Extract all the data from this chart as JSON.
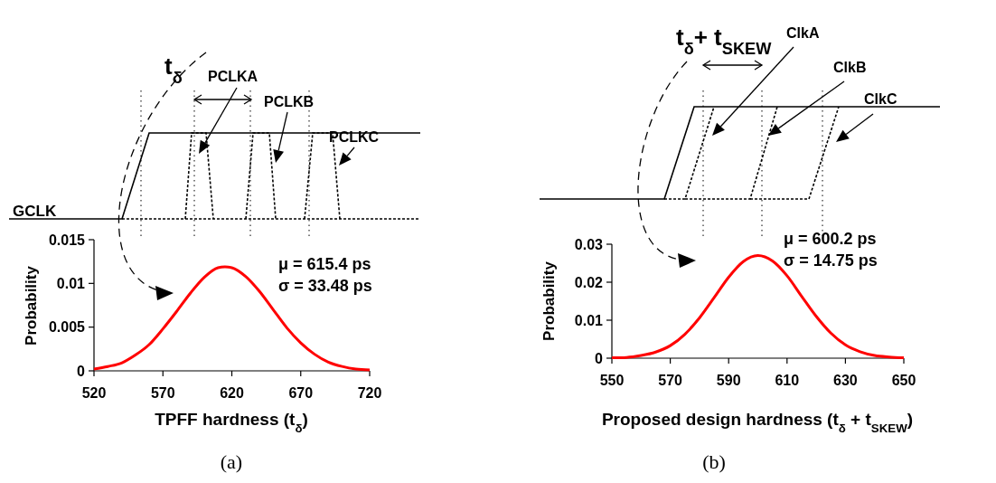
{
  "chart_data": [
    {
      "type": "line",
      "xlabel": "TPFF hardness (t$_{δ}$)",
      "ylabel": "Probability",
      "series": [
        {
          "color": "#ff0000",
          "x": [
            520,
            530,
            540,
            550,
            560,
            570,
            580,
            590,
            600,
            610,
            615,
            620,
            630,
            640,
            650,
            660,
            670,
            680,
            690,
            700,
            710,
            720
          ],
          "values": [
            0.0002,
            0.0005,
            0.0009,
            0.0018,
            0.003,
            0.0048,
            0.0068,
            0.0089,
            0.0107,
            0.0118,
            0.0119,
            0.0118,
            0.0108,
            0.0091,
            0.007,
            0.0049,
            0.0032,
            0.0019,
            0.001,
            0.0005,
            0.0002,
            0.0001
          ]
        }
      ],
      "xlim": [
        520,
        720
      ],
      "xticks": [
        520,
        570,
        620,
        670,
        720
      ],
      "ylim": [
        0,
        0.015
      ],
      "yticks": [
        0,
        0.005,
        0.01,
        0.015
      ],
      "annotations": [
        "μ = 615.4 ps",
        "σ = 33.48 ps",
        "GCLK",
        "PCLKA",
        "PCLKB",
        "PCLKC",
        "t$_{δ}$",
        "(a)"
      ]
    },
    {
      "type": "line",
      "xlabel": "Proposed design hardness (t$_{δ}$ + t$_{SKEW}$)",
      "ylabel": "Probability",
      "series": [
        {
          "color": "#ff0000",
          "x": [
            550,
            555,
            560,
            565,
            570,
            575,
            580,
            585,
            590,
            595,
            600,
            605,
            610,
            615,
            620,
            625,
            630,
            635,
            640,
            645,
            650
          ],
          "values": [
            0.0001,
            0.0002,
            0.0007,
            0.0016,
            0.0033,
            0.0063,
            0.0106,
            0.0159,
            0.0213,
            0.0254,
            0.027,
            0.0256,
            0.0217,
            0.0163,
            0.011,
            0.0066,
            0.0035,
            0.0017,
            0.0007,
            0.0003,
            0.0001
          ]
        }
      ],
      "xlim": [
        550,
        650
      ],
      "xticks": [
        550,
        570,
        590,
        610,
        630,
        650
      ],
      "ylim": [
        0,
        0.03
      ],
      "yticks": [
        0,
        0.01,
        0.02,
        0.03
      ],
      "annotations": [
        "μ = 600.2 ps",
        "σ = 14.75 ps",
        "ClkA",
        "ClkB",
        "ClkC",
        "t$_{δ}$+ t$_{SKEW}$",
        "(b)"
      ]
    }
  ]
}
